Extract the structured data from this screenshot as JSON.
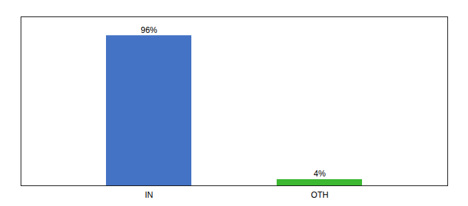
{
  "chart_data": {
    "type": "bar",
    "categories": [
      "IN",
      "OTH"
    ],
    "values": [
      96,
      4
    ],
    "colors": [
      "#4472c4",
      "#3cb832"
    ],
    "value_labels": [
      "96%",
      "4%"
    ],
    "data_labels": true,
    "ylim": [
      0,
      108
    ],
    "tick_labels": "x"
  }
}
